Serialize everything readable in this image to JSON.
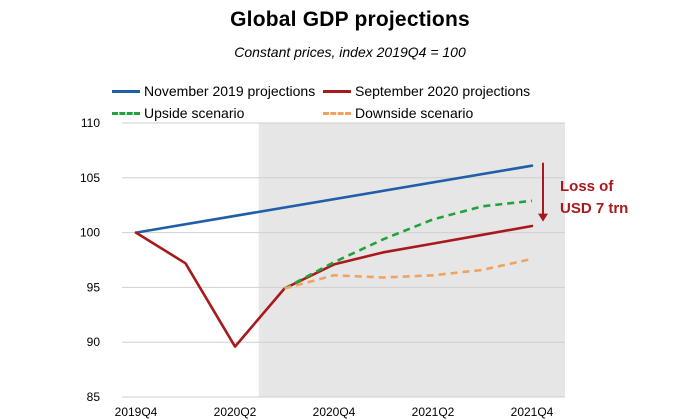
{
  "chart_data": {
    "type": "line",
    "title": "Global GDP projections",
    "subtitle": "Constant prices, index 2019Q4 = 100",
    "xlabel": "",
    "ylabel": "",
    "ylim": [
      85,
      110
    ],
    "yticks": [
      85,
      90,
      95,
      100,
      105,
      110
    ],
    "x_quarters": [
      "2019Q4",
      "2020Q1",
      "2020Q2",
      "2020Q3",
      "2020Q4",
      "2021Q1",
      "2021Q2",
      "2021Q3",
      "2021Q4"
    ],
    "x_tick_labels": [
      "2019Q4",
      "2020Q2",
      "2020Q4",
      "2021Q2",
      "2021Q4"
    ],
    "shaded_region": {
      "from": "2020Q3",
      "to": "2021Q4",
      "color": "#e6e6e6"
    },
    "series": [
      {
        "name": "November 2019 projections",
        "color": "#1f5fa8",
        "style": "solid",
        "x": [
          0,
          8
        ],
        "values": [
          100.0,
          106.1
        ]
      },
      {
        "name": "September 2020 projections",
        "color": "#a8191d",
        "style": "solid",
        "x": [
          0,
          1,
          2,
          3,
          4,
          5,
          6,
          7,
          8
        ],
        "values": [
          100.0,
          97.2,
          89.6,
          94.9,
          97.1,
          98.2,
          99.0,
          99.8,
          100.6
        ]
      },
      {
        "name": "Upside scenario",
        "color": "#22a23a",
        "style": "dashed",
        "x": [
          3,
          4,
          5,
          6,
          7,
          8
        ],
        "values": [
          94.9,
          97.3,
          99.4,
          101.2,
          102.4,
          102.9
        ]
      },
      {
        "name": "Downside scenario",
        "color": "#f0a35e",
        "style": "dashed",
        "x": [
          3,
          4,
          5,
          6,
          7,
          8
        ],
        "values": [
          94.9,
          96.1,
          95.9,
          96.1,
          96.6,
          97.6
        ]
      }
    ],
    "legend": {
      "placement": "top",
      "columns": 2
    },
    "annotation": {
      "lines": [
        "Loss of",
        "USD 7 trn"
      ],
      "color": "#a8191d",
      "arrow_from": 106.1,
      "arrow_to": 101.0
    }
  }
}
